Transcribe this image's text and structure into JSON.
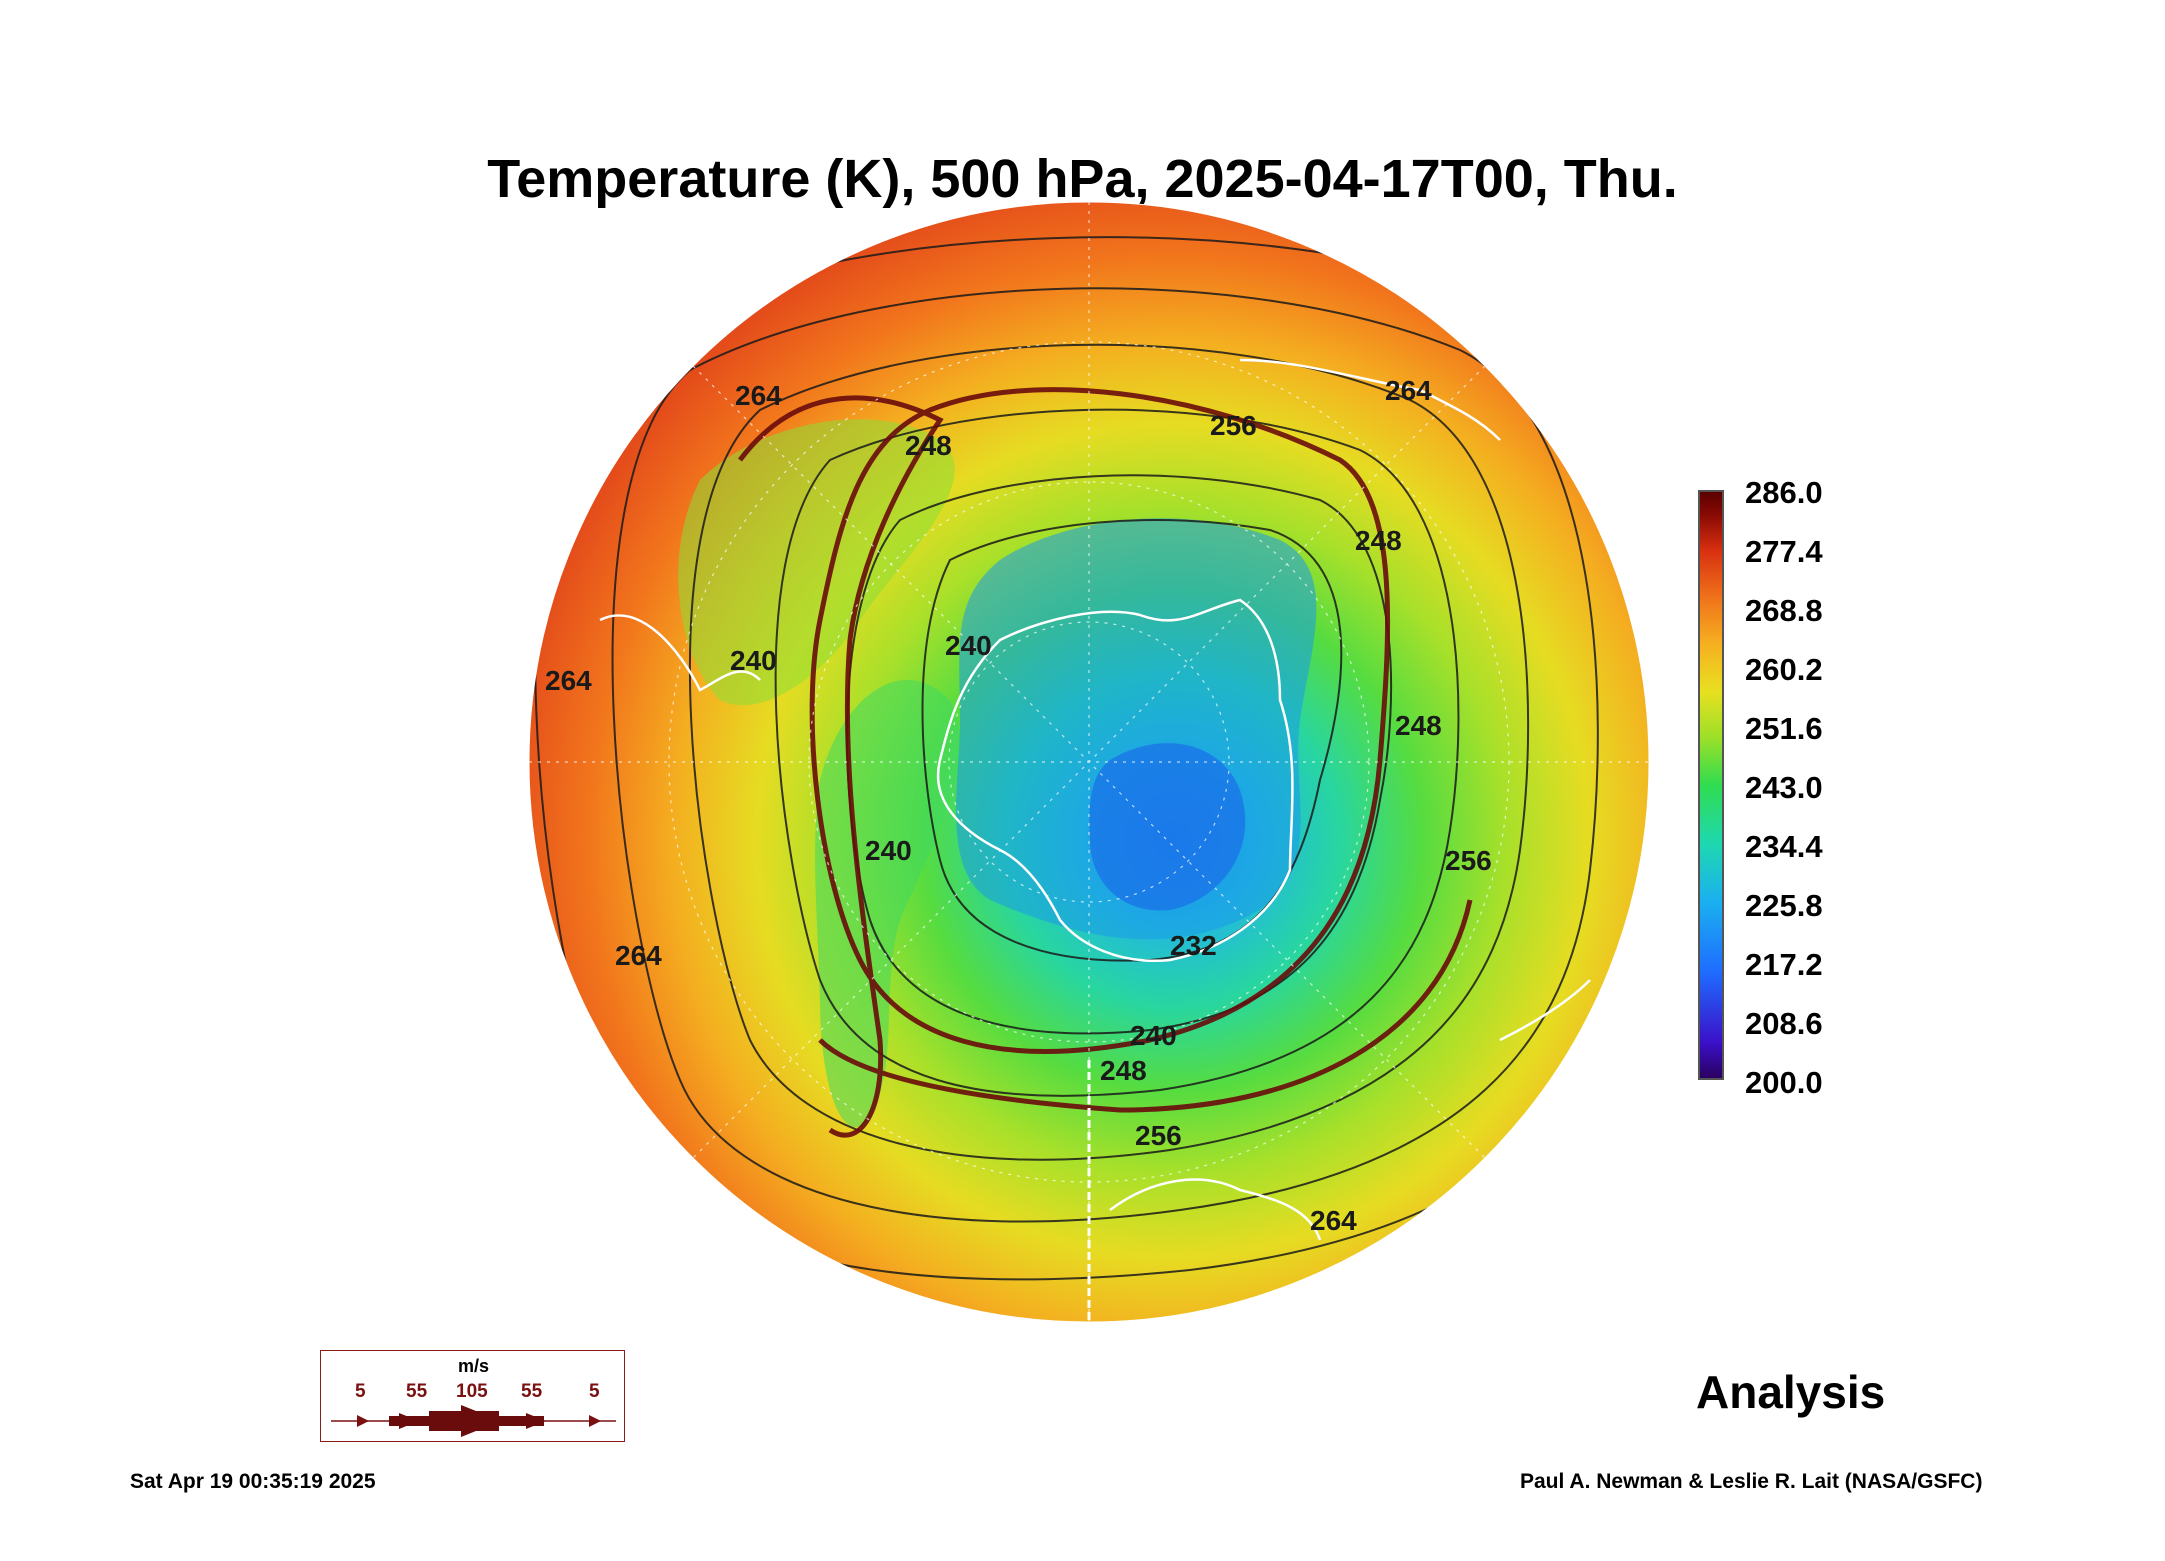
{
  "title": "Temperature (K), 500 hPa, 2025-04-17T00, Thu.",
  "colorbar": {
    "labels": [
      "286.0",
      "277.4",
      "268.8",
      "260.2",
      "251.6",
      "243.0",
      "234.4",
      "225.8",
      "217.2",
      "208.6",
      "200.0"
    ],
    "min": 200.0,
    "max": 286.0
  },
  "contour_labels": [
    "264",
    "256",
    "264",
    "248",
    "240",
    "240",
    "248",
    "256",
    "232",
    "240",
    "248",
    "256",
    "264",
    "264",
    "240",
    "248",
    "264"
  ],
  "analysis_label": "Analysis",
  "wind_legend": {
    "unit": "m/s",
    "values": [
      "5",
      "55",
      "105",
      "55",
      "5"
    ]
  },
  "footer": {
    "timestamp": "Sat Apr 19 00:35:19 2025",
    "credit": "Paul A. Newman & Leslie R. Lait (NASA/GSFC)"
  },
  "colors": {
    "warm_edge": "#e8401a",
    "cold_core": "#1e8cf0",
    "contour": "#1a1a1a",
    "streamline": "#6a0c0c",
    "coastline": "#ffffff"
  }
}
